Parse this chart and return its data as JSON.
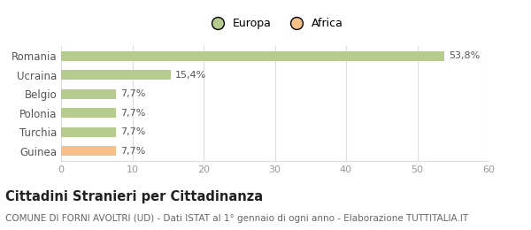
{
  "categories": [
    "Guinea",
    "Turchia",
    "Polonia",
    "Belgio",
    "Ucraina",
    "Romania"
  ],
  "values": [
    7.7,
    7.7,
    7.7,
    7.7,
    15.4,
    53.8
  ],
  "labels": [
    "7,7%",
    "7,7%",
    "7,7%",
    "7,7%",
    "15,4%",
    "53,8%"
  ],
  "colors": [
    "#f5c08a",
    "#b5cc8e",
    "#b5cc8e",
    "#b5cc8e",
    "#b5cc8e",
    "#b5cc8e"
  ],
  "legend_entries": [
    "Europa",
    "Africa"
  ],
  "legend_colors": [
    "#b5cc8e",
    "#f5c08a"
  ],
  "xlim": [
    0,
    60
  ],
  "xticks": [
    0,
    10,
    20,
    30,
    40,
    50,
    60
  ],
  "title": "Cittadini Stranieri per Cittadinanza",
  "subtitle": "COMUNE DI FORNI AVOLTRI (UD) - Dati ISTAT al 1° gennaio di ogni anno - Elaborazione TUTTITALIA.IT",
  "title_fontsize": 10.5,
  "subtitle_fontsize": 7.5,
  "bar_height": 0.5,
  "background_color": "#ffffff",
  "grid_color": "#dddddd",
  "label_color": "#555555",
  "axis_label_color": "#999999"
}
